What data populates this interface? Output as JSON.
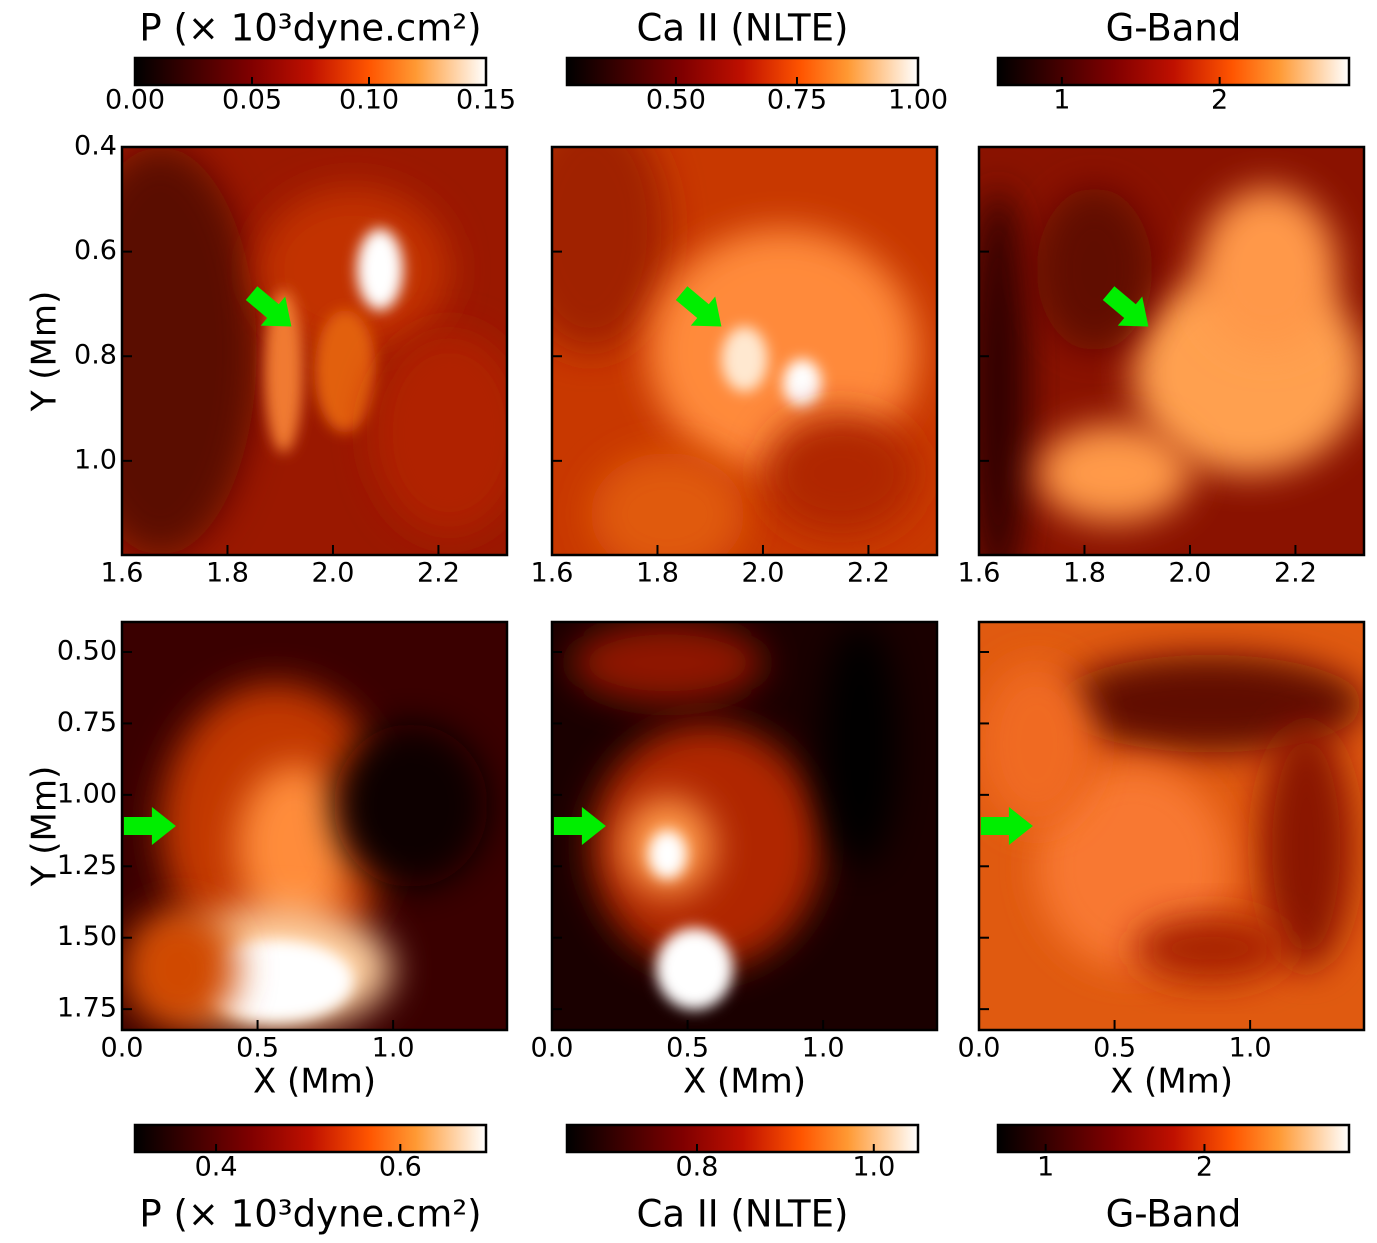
{
  "chart_data": [
    {
      "type": "heatmap",
      "colorbar": {
        "label": "P (× 10³dyne.cm²)",
        "position": "top",
        "lim": [
          0,
          0.15
        ],
        "ticks": [
          {
            "value": 0,
            "label": "0.00"
          },
          0.05,
          {
            "value": 0.1,
            "label": "0.10"
          },
          0.15
        ]
      },
      "xlim": [
        1.6,
        2.33
      ],
      "xticks": [
        1.6,
        1.8,
        {
          "value": 2.0,
          "label": "2.0"
        },
        2.2
      ],
      "ylim": [
        0.4,
        1.18
      ],
      "yticks": [
        0.4,
        0.6,
        0.8,
        {
          "value": 1.0,
          "label": "1.0"
        }
      ],
      "show_yticklabels": true,
      "ylabel": "Y (Mm)"
    },
    {
      "type": "heatmap",
      "colorbar": {
        "label": "Ca II (NLTE)",
        "position": "top",
        "lim": [
          0.275,
          1.0
        ],
        "ticks": [
          {
            "value": 0.5,
            "label": "0.50"
          },
          0.75,
          {
            "value": 1.0,
            "label": "1.00"
          }
        ]
      },
      "xlim": [
        1.6,
        2.33
      ],
      "xticks": [
        1.6,
        1.8,
        {
          "value": 2.0,
          "label": "2.0"
        },
        2.2
      ],
      "ylim": [
        0.4,
        1.18
      ],
      "yticks": [
        0.4,
        0.6,
        0.8,
        1.0
      ],
      "show_yticklabels": false
    },
    {
      "type": "heatmap",
      "colorbar": {
        "label": "G-Band",
        "position": "top",
        "lim": [
          0.595,
          2.82
        ],
        "ticks": [
          1,
          2
        ]
      },
      "xlim": [
        1.6,
        2.33
      ],
      "xticks": [
        1.6,
        1.8,
        {
          "value": 2.0,
          "label": "2.0"
        },
        2.2
      ],
      "ylim": [
        0.4,
        1.18
      ],
      "yticks": [
        0.4,
        0.6,
        0.8,
        1.0
      ],
      "show_yticklabels": false
    },
    {
      "type": "heatmap",
      "colorbar": {
        "label": "P (× 10³dyne.cm²)",
        "position": "bottom",
        "lim": [
          0.312,
          0.693
        ],
        "ticks": [
          0.4,
          0.6
        ]
      },
      "xlim": [
        0,
        1.42
      ],
      "xticks": [
        {
          "value": 0,
          "label": "0.0"
        },
        0.5,
        {
          "value": 1.0,
          "label": "1.0"
        }
      ],
      "ylim": [
        0.395,
        1.823
      ],
      "yticks": [
        {
          "value": 0.5,
          "label": "0.50"
        },
        0.75,
        {
          "value": 1.0,
          "label": "1.00"
        },
        1.25,
        {
          "value": 1.5,
          "label": "1.50"
        },
        1.75
      ],
      "show_yticklabels": true,
      "xlabel": "X (Mm)",
      "ylabel": "Y (Mm)"
    },
    {
      "type": "heatmap",
      "colorbar": {
        "label": "Ca II (NLTE)",
        "position": "bottom",
        "lim": [
          0.653,
          1.05
        ],
        "ticks": [
          0.8,
          {
            "value": 1.0,
            "label": "1.0"
          }
        ]
      },
      "xlim": [
        0,
        1.42
      ],
      "xticks": [
        {
          "value": 0,
          "label": "0.0"
        },
        0.5,
        {
          "value": 1.0,
          "label": "1.0"
        }
      ],
      "ylim": [
        0.395,
        1.823
      ],
      "yticks": [
        0.5,
        0.75,
        1.0,
        1.25,
        1.5,
        1.75
      ],
      "show_yticklabels": false,
      "xlabel": "X (Mm)"
    },
    {
      "type": "heatmap",
      "colorbar": {
        "label": "G-Band",
        "position": "bottom",
        "lim": [
          0.7,
          2.91
        ],
        "ticks": [
          1,
          2
        ]
      },
      "xlim": [
        0,
        1.42
      ],
      "xticks": [
        {
          "value": 0,
          "label": "0.0"
        },
        0.5,
        {
          "value": 1.0,
          "label": "1.0"
        }
      ],
      "ylim": [
        0.395,
        1.823
      ],
      "yticks": [
        0.5,
        0.75,
        1.0,
        1.25,
        1.5,
        1.75
      ],
      "show_yticklabels": false,
      "xlabel": "X (Mm)"
    }
  ]
}
